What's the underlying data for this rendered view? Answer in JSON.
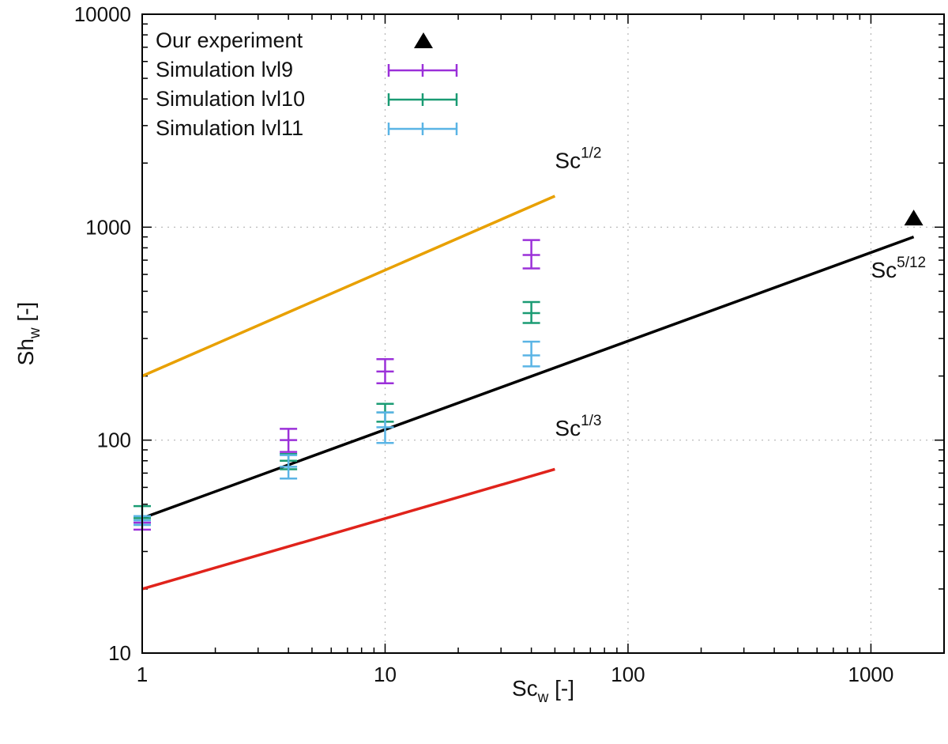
{
  "chart_data": {
    "type": "scatter",
    "x_scale": "log",
    "y_scale": "log",
    "xlim": [
      1,
      2000
    ],
    "ylim": [
      10,
      10000
    ],
    "xlabel": {
      "base": "Sc",
      "sub": "w",
      "rest": " [-]"
    },
    "ylabel": {
      "base": "Sh",
      "sub": "w",
      "rest": " [-]"
    },
    "x_ticks": [
      1,
      10,
      100,
      1000
    ],
    "x_tick_labels": [
      "1",
      "10",
      "100",
      "1000"
    ],
    "y_ticks": [
      10,
      100,
      1000,
      10000
    ],
    "y_tick_labels": [
      "10",
      "100",
      "1000",
      "10000"
    ],
    "grid": true,
    "legend_position": "top-left",
    "series": [
      {
        "name": "Our experiment",
        "kind": "marker",
        "color": "#000000",
        "points": [
          {
            "x": 1500,
            "y": 1100
          }
        ]
      },
      {
        "name": "Simulation lvl9",
        "kind": "errorbar",
        "color": "#9b30d9",
        "points": [
          {
            "x": 1,
            "y": 41,
            "ylow": 38,
            "yhigh": 44
          },
          {
            "x": 4,
            "y": 100,
            "ylow": 88,
            "yhigh": 113
          },
          {
            "x": 10,
            "y": 210,
            "ylow": 185,
            "yhigh": 240
          },
          {
            "x": 40,
            "y": 740,
            "ylow": 640,
            "yhigh": 870
          }
        ]
      },
      {
        "name": "Simulation lvl10",
        "kind": "errorbar",
        "color": "#1a9b73",
        "points": [
          {
            "x": 1,
            "y": 43,
            "ylow": 40,
            "yhigh": 49
          },
          {
            "x": 4,
            "y": 80,
            "ylow": 73,
            "yhigh": 86
          },
          {
            "x": 10,
            "y": 135,
            "ylow": 122,
            "yhigh": 148
          },
          {
            "x": 40,
            "y": 395,
            "ylow": 355,
            "yhigh": 445
          }
        ]
      },
      {
        "name": "Simulation lvl11",
        "kind": "errorbar",
        "color": "#5ab4e5",
        "points": [
          {
            "x": 1,
            "y": 42,
            "ylow": 40,
            "yhigh": 44
          },
          {
            "x": 4,
            "y": 75,
            "ylow": 66,
            "yhigh": 85
          },
          {
            "x": 10,
            "y": 115,
            "ylow": 97,
            "yhigh": 135
          },
          {
            "x": 40,
            "y": 250,
            "ylow": 222,
            "yhigh": 290
          }
        ]
      }
    ],
    "fits": [
      {
        "name": "Sc1/2",
        "color": "#e8a000",
        "points": [
          {
            "x": 1,
            "y": 200
          },
          {
            "x": 50,
            "y": 1400
          }
        ]
      },
      {
        "name": "Sc5/12",
        "color": "#000000",
        "points": [
          {
            "x": 1,
            "y": 43
          },
          {
            "x": 1500,
            "y": 900
          }
        ]
      },
      {
        "name": "Sc1/3",
        "color": "#e0231b",
        "points": [
          {
            "x": 1,
            "y": 20
          },
          {
            "x": 50,
            "y": 73
          }
        ]
      }
    ],
    "annotations": [
      {
        "base": "Sc",
        "exp": "1/2",
        "x": 50,
        "y": 1900
      },
      {
        "base": "Sc",
        "exp": "5/12",
        "x": 1000,
        "y": 580
      },
      {
        "base": "Sc",
        "exp": "1/3",
        "x": 50,
        "y": 105
      }
    ]
  }
}
